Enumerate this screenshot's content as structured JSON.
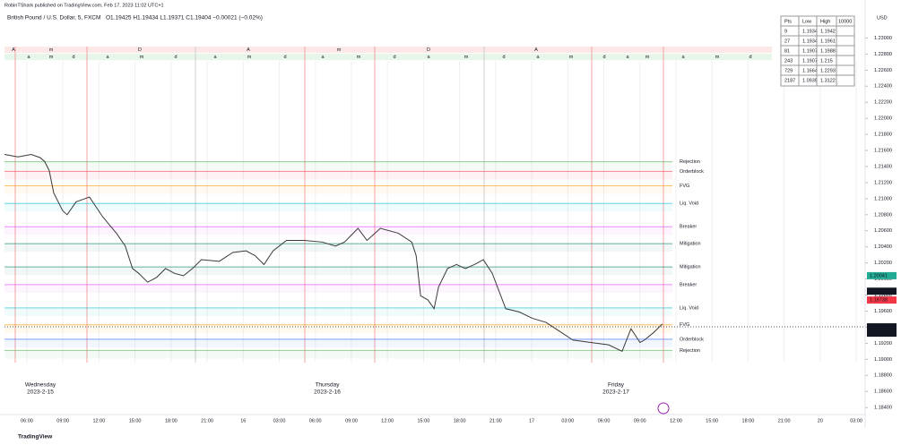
{
  "chart_data": {
    "type": "line",
    "header": "RobinTShark published on TradingView.com, Feb 17, 2023 11:02 UTC+1",
    "title": "British Pound / U.S. Dollar, 5, FXCM",
    "ohlc": "O1.19425 H1.19434 L1.19371 C1.19404 −0.00021 (−0.02%)",
    "currency": "USD",
    "footer": "TradingView",
    "days": [
      {
        "name": "Wednesday",
        "date": "2023-2-15"
      },
      {
        "name": "Thursday",
        "date": "2023-2-16"
      },
      {
        "name": "Friday",
        "date": "2023-2-17"
      }
    ],
    "session_row1": [
      "A",
      "m",
      "D",
      "A",
      "m",
      "D",
      "A"
    ],
    "session_row2": [
      "a",
      "m",
      "d",
      "a",
      "m",
      "d",
      "a",
      "m",
      "d",
      "a",
      "m",
      "d",
      "a",
      "m",
      "d",
      "a",
      "m",
      "d",
      "a",
      "m",
      "a",
      "m",
      "d"
    ],
    "x": [
      4.14,
      5.26,
      6.37,
      7.12,
      7.49,
      7.86,
      8.24,
      8.98,
      9.35,
      10.1,
      11.21,
      12.33,
      13.45,
      14.19,
      14.79,
      15.31,
      16.05,
      16.8,
      17.54,
      18.29,
      19.03,
      19.78,
      20.52,
      22.01,
      23.13,
      24.24,
      24.99,
      25.73,
      26.48,
      27.6,
      29.08,
      30.57,
      31.69,
      32.43,
      33.55,
      34.3,
      35.41,
      36.9,
      38.02,
      38.39,
      38.76,
      39.36,
      39.88,
      40.25,
      41.0,
      41.74,
      42.49,
      43.23,
      43.98,
      44.72,
      45.84,
      46.96,
      48.07,
      49.19,
      50.31,
      51.42,
      52.91,
      54.4,
      55.52,
      56.26,
      57.01,
      57.38,
      58.12,
      58.87
    ],
    "series": [
      {
        "name": "GBPUSD",
        "color": "#3a3a3a",
        "values": [
          1.2155,
          1.2152,
          1.2155,
          1.2151,
          1.2146,
          1.2135,
          1.2107,
          1.2085,
          1.208,
          1.2096,
          1.2102,
          1.2077,
          1.2057,
          1.2041,
          1.2013,
          1.2007,
          1.1996,
          1.2002,
          1.2013,
          1.2007,
          1.2004,
          1.2013,
          1.2024,
          1.2022,
          1.2033,
          1.2035,
          1.2029,
          1.2018,
          1.2035,
          1.2048,
          1.2048,
          1.2046,
          1.2041,
          1.2046,
          1.2063,
          1.2048,
          1.2063,
          1.2057,
          1.2046,
          1.2029,
          1.1979,
          1.1974,
          1.1963,
          1.199,
          1.2013,
          1.2018,
          1.2013,
          1.2018,
          1.2024,
          1.2007,
          1.1963,
          1.1959,
          1.1951,
          1.1946,
          1.1935,
          1.1924,
          1.1921,
          1.1918,
          1.191,
          1.1938,
          1.1921,
          1.1924,
          1.1933,
          1.1944
        ]
      }
    ],
    "levels": [
      {
        "label": "Rejection",
        "value": 1.2146,
        "color": "#4caf50"
      },
      {
        "label": "Orderblock",
        "value": 1.2134,
        "color": "#f23645"
      },
      {
        "label": "FVG",
        "value": 1.2116,
        "color": "#ff9800"
      },
      {
        "label": "Liq. Void",
        "value": 1.2094,
        "color": "#00bcd4"
      },
      {
        "label": "Breaker",
        "value": 1.2065,
        "color": "#e040fb"
      },
      {
        "label": "Mitigation",
        "value": 1.2044,
        "color": "#00796b"
      },
      {
        "label": "Mitigation",
        "value": 1.2015,
        "color": "#00796b"
      },
      {
        "label": "Breaker",
        "value": 1.1993,
        "color": "#e040fb"
      },
      {
        "label": "Liq. Void",
        "value": 1.1964,
        "color": "#00bcd4"
      },
      {
        "label": "FVG",
        "value": 1.1943,
        "color": "#ff9800"
      },
      {
        "label": "Orderblock",
        "value": 1.1925,
        "color": "#2962ff"
      },
      {
        "label": "Rejection",
        "value": 1.1911,
        "color": "#4caf50"
      }
    ],
    "price_labels": [
      {
        "value": 1.20041,
        "color": "#22ab94"
      },
      {
        "value": 1.19848,
        "color": "#131722"
      },
      {
        "value": 1.19738,
        "color": "#f23645"
      },
      {
        "value": 1.19404,
        "color": "#131722",
        "sub": "02:34"
      }
    ],
    "stats_table": {
      "header": [
        "Pts",
        "Low",
        "High",
        "10000"
      ],
      "rows": [
        [
          "9",
          "1.1934",
          "1.1942"
        ],
        [
          "27",
          "1.1934",
          "1.1961"
        ],
        [
          "81",
          "1.1907",
          "1.1988"
        ],
        [
          "243",
          "1.1907",
          "1.215"
        ],
        [
          "729",
          "1.1664",
          "1.2293"
        ],
        [
          "2187",
          "1.0935",
          "1.3122"
        ]
      ]
    },
    "xlim": [
      4.14,
      75.74
    ],
    "xticks": [
      {
        "value": 6,
        "label": "06:00"
      },
      {
        "value": 9,
        "label": "09:00"
      },
      {
        "value": 12,
        "label": "12:00"
      },
      {
        "value": 15,
        "label": "15:00"
      },
      {
        "value": 18,
        "label": "18:00"
      },
      {
        "value": 21,
        "label": "21:00"
      },
      {
        "value": 24,
        "label": "16"
      },
      {
        "value": 27,
        "label": "03:00"
      },
      {
        "value": 30,
        "label": "06:00"
      },
      {
        "value": 33,
        "label": "09:00"
      },
      {
        "value": 36,
        "label": "12:00"
      },
      {
        "value": 39,
        "label": "15:00"
      },
      {
        "value": 42,
        "label": "18:00"
      },
      {
        "value": 45,
        "label": "21:00"
      },
      {
        "value": 48,
        "label": "17"
      },
      {
        "value": 51,
        "label": "03:00"
      },
      {
        "value": 54,
        "label": "06:00"
      },
      {
        "value": 57,
        "label": "09:00"
      },
      {
        "value": 60,
        "label": "12:00"
      },
      {
        "value": 63,
        "label": "15:00"
      },
      {
        "value": 66,
        "label": "18:00"
      },
      {
        "value": 69,
        "label": "21:00"
      },
      {
        "value": 72,
        "label": "20"
      },
      {
        "value": 75,
        "label": "03:00"
      }
    ],
    "ylim": [
      1.1829,
      1.2325
    ],
    "yticks": [
      {
        "value": 1.23,
        "label": "1.23000"
      },
      {
        "value": 1.228,
        "label": "1.22800"
      },
      {
        "value": 1.226,
        "label": "1.22600"
      },
      {
        "value": 1.224,
        "label": "1.22400"
      },
      {
        "value": 1.222,
        "label": "1.22200"
      },
      {
        "value": 1.22,
        "label": "1.22000"
      },
      {
        "value": 1.218,
        "label": "1.21800"
      },
      {
        "value": 1.216,
        "label": "1.21600"
      },
      {
        "value": 1.214,
        "label": "1.21400"
      },
      {
        "value": 1.212,
        "label": "1.21200"
      },
      {
        "value": 1.21,
        "label": "1.21000"
      },
      {
        "value": 1.208,
        "label": "1.20800"
      },
      {
        "value": 1.206,
        "label": "1.20600"
      },
      {
        "value": 1.204,
        "label": "1.20400"
      },
      {
        "value": 1.202,
        "label": "1.20200"
      },
      {
        "value": 1.2,
        "label": "1.20000"
      },
      {
        "value": 1.198,
        "label": "1.19800"
      },
      {
        "value": 1.196,
        "label": "1.19600"
      },
      {
        "value": 1.194,
        "label": "1.19400"
      },
      {
        "value": 1.192,
        "label": "1.19200"
      },
      {
        "value": 1.19,
        "label": "1.19000"
      },
      {
        "value": 1.188,
        "label": "1.18800"
      },
      {
        "value": 1.186,
        "label": "1.18600"
      },
      {
        "value": 1.184,
        "label": "1.18400"
      }
    ],
    "grid": true
  }
}
